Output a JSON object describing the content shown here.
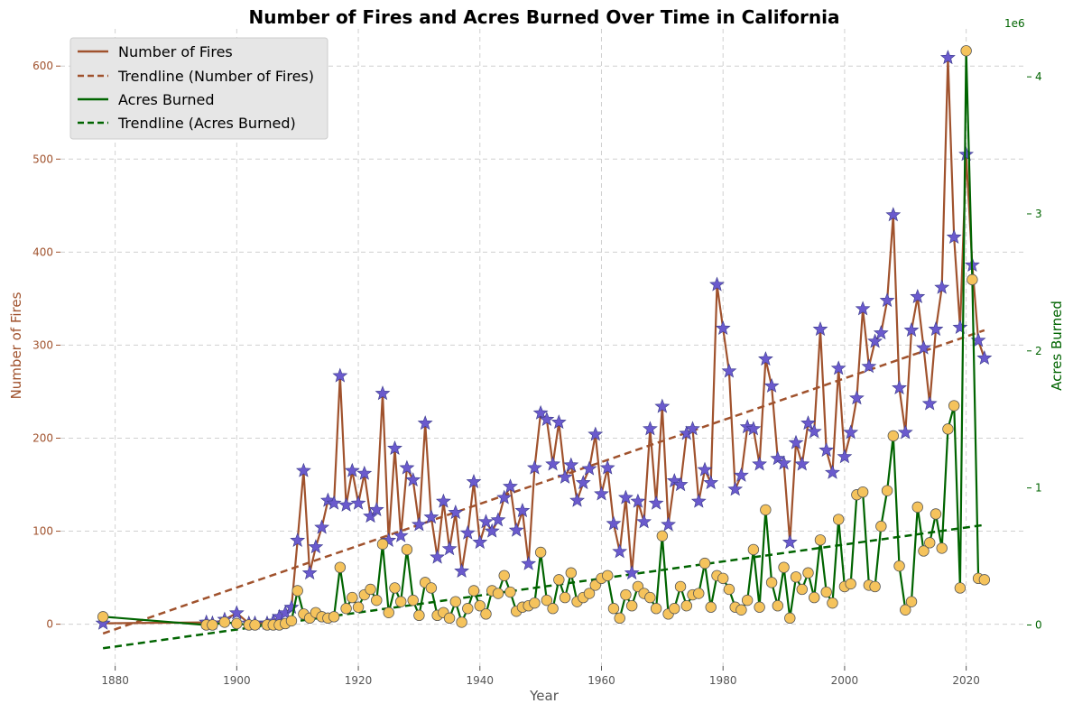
{
  "chart_data": {
    "type": "line",
    "title": "Number of Fires and Acres Burned Over Time in California",
    "xlabel": "Year",
    "ylabel_left": "Number of Fires",
    "ylabel_right": "Acres Burned",
    "right_axis_multiplier": "1e6",
    "xlim": [
      1871,
      2030
    ],
    "ylim_left": [
      -45,
      640
    ],
    "ylim_right": [
      -0.3,
      4.35
    ],
    "xticks": [
      1880,
      1900,
      1920,
      1940,
      1960,
      1980,
      2000,
      2020
    ],
    "yticks_left": [
      0,
      100,
      200,
      300,
      400,
      500,
      600
    ],
    "yticks_right": [
      0,
      1,
      2,
      3,
      4
    ],
    "grid": true,
    "legend_position": "top-left",
    "colors": {
      "fires": "#a0522d",
      "acres": "#006400",
      "star": "#6a5acd",
      "dot": "#f5c35c"
    },
    "x": [
      1878,
      1895,
      1896,
      1898,
      1900,
      1902,
      1903,
      1905,
      1906,
      1907,
      1908,
      1909,
      1910,
      1911,
      1912,
      1913,
      1914,
      1915,
      1916,
      1917,
      1918,
      1919,
      1920,
      1921,
      1922,
      1923,
      1924,
      1925,
      1926,
      1927,
      1928,
      1929,
      1930,
      1931,
      1932,
      1933,
      1934,
      1935,
      1936,
      1937,
      1938,
      1939,
      1940,
      1941,
      1942,
      1943,
      1944,
      1945,
      1946,
      1947,
      1948,
      1949,
      1950,
      1951,
      1952,
      1953,
      1954,
      1955,
      1956,
      1957,
      1958,
      1959,
      1960,
      1961,
      1962,
      1963,
      1964,
      1965,
      1966,
      1967,
      1968,
      1969,
      1970,
      1971,
      1972,
      1973,
      1974,
      1975,
      1976,
      1977,
      1978,
      1979,
      1980,
      1981,
      1982,
      1983,
      1984,
      1985,
      1986,
      1987,
      1988,
      1989,
      1990,
      1991,
      1992,
      1993,
      1994,
      1995,
      1996,
      1997,
      1998,
      1999,
      2000,
      2001,
      2002,
      2003,
      2004,
      2005,
      2006,
      2007,
      2008,
      2009,
      2010,
      2011,
      2012,
      2013,
      2014,
      2015,
      2016,
      2017,
      2018,
      2019,
      2020,
      2021,
      2022,
      2023
    ],
    "series": [
      {
        "name": "Number of Fires",
        "axis": "left",
        "values": [
          1,
          2,
          1,
          5,
          12,
          1,
          1,
          1,
          3,
          8,
          12,
          18,
          90,
          165,
          55,
          83,
          104,
          133,
          130,
          267,
          128,
          165,
          130,
          162,
          116,
          123,
          248,
          90,
          189,
          95,
          168,
          155,
          107,
          216,
          115,
          72,
          132,
          81,
          120,
          57,
          98,
          153,
          88,
          110,
          100,
          112,
          136,
          148,
          101,
          122,
          65,
          168,
          227,
          220,
          172,
          217,
          158,
          171,
          133,
          152,
          167,
          204,
          140,
          168,
          108,
          78,
          136,
          55,
          132,
          110,
          210,
          130,
          234,
          107,
          154,
          150,
          205,
          210,
          132,
          166,
          152,
          365,
          318,
          272,
          145,
          160,
          212,
          210,
          172,
          285,
          256,
          178,
          173,
          88,
          195,
          172,
          216,
          207,
          317,
          187,
          163,
          275,
          180,
          206,
          243,
          339,
          277,
          304,
          313,
          348,
          440,
          254,
          206,
          316,
          352,
          297,
          237,
          317,
          362,
          609,
          416,
          319,
          505,
          386,
          305,
          286
        ]
      },
      {
        "name": "Acres Burned",
        "axis": "right",
        "values": [
          0.06,
          0.0,
          0.0,
          0.02,
          0.01,
          0.0,
          0.0,
          0.0,
          0.0,
          0.0,
          0.01,
          0.03,
          0.25,
          0.08,
          0.05,
          0.09,
          0.06,
          0.05,
          0.06,
          0.42,
          0.12,
          0.2,
          0.13,
          0.22,
          0.26,
          0.18,
          0.59,
          0.09,
          0.27,
          0.17,
          0.55,
          0.18,
          0.07,
          0.31,
          0.27,
          0.07,
          0.09,
          0.05,
          0.17,
          0.02,
          0.12,
          0.25,
          0.14,
          0.08,
          0.25,
          0.23,
          0.36,
          0.24,
          0.1,
          0.13,
          0.14,
          0.16,
          0.53,
          0.18,
          0.12,
          0.33,
          0.2,
          0.38,
          0.17,
          0.2,
          0.23,
          0.29,
          0.34,
          0.36,
          0.12,
          0.05,
          0.22,
          0.14,
          0.28,
          0.23,
          0.2,
          0.12,
          0.65,
          0.08,
          0.12,
          0.28,
          0.14,
          0.22,
          0.23,
          0.45,
          0.13,
          0.36,
          0.34,
          0.26,
          0.13,
          0.11,
          0.18,
          0.55,
          0.13,
          0.84,
          0.31,
          0.14,
          0.42,
          0.05,
          0.35,
          0.26,
          0.38,
          0.2,
          0.62,
          0.24,
          0.16,
          0.77,
          0.28,
          0.3,
          0.95,
          0.97,
          0.29,
          0.28,
          0.72,
          0.98,
          1.38,
          0.43,
          0.11,
          0.17,
          0.86,
          0.54,
          0.6,
          0.81,
          0.56,
          1.43,
          1.6,
          0.27,
          4.19,
          2.52,
          0.34,
          0.33
        ]
      },
      {
        "name": "Trendline (Number of Fires)",
        "axis": "left",
        "style": "dashed",
        "x": [
          1878,
          2023
        ],
        "values": [
          -10,
          316
        ]
      },
      {
        "name": "Trendline (Acres Burned)",
        "axis": "right",
        "style": "dashed",
        "x": [
          1878,
          2023
        ],
        "values": [
          -0.17,
          0.73
        ]
      }
    ]
  }
}
